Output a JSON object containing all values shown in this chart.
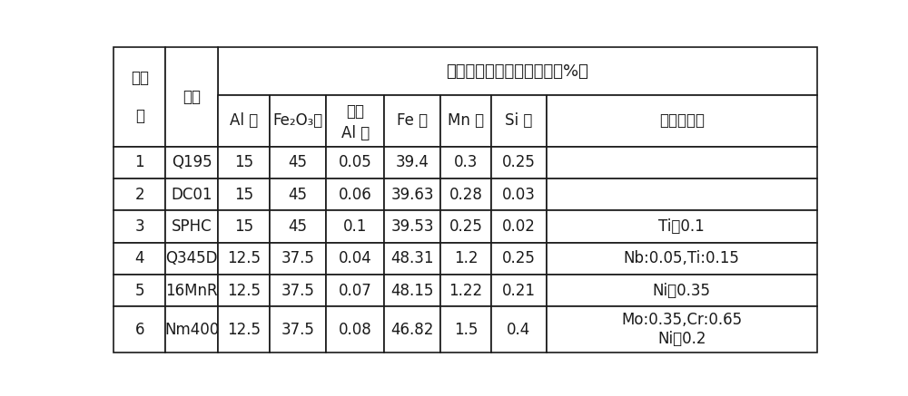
{
  "title": "铝热剂组分（按物质的量，%）",
  "col_headers_line1": [
    "Al 粉",
    "Fe₂O₃粉",
    "过量",
    "Fe 粉",
    "Mn 粉",
    "Si 粉",
    "其他金属粉"
  ],
  "col_headers_line2": [
    "",
    "",
    "Al 粉",
    "",
    "",
    "",
    ""
  ],
  "row_headers_col1": [
    "1",
    "2",
    "3",
    "4",
    "5",
    "6"
  ],
  "row_headers_col2": [
    "Q195",
    "DC01",
    "SPHC",
    "Q345D",
    "16MnR",
    "Nm400"
  ],
  "data": [
    [
      "15",
      "45",
      "0.05",
      "39.4",
      "0.3",
      "0.25",
      ""
    ],
    [
      "15",
      "45",
      "0.06",
      "39.63",
      "0.28",
      "0.03",
      ""
    ],
    [
      "15",
      "45",
      "0.1",
      "39.53",
      "0.25",
      "0.02",
      "Ti：0.1"
    ],
    [
      "12.5",
      "37.5",
      "0.04",
      "48.31",
      "1.2",
      "0.25",
      "Nb:0.05,Ti:0.15"
    ],
    [
      "12.5",
      "37.5",
      "0.07",
      "48.15",
      "1.22",
      "0.21",
      "Ni：0.35"
    ],
    [
      "12.5",
      "37.5",
      "0.08",
      "46.82",
      "1.5",
      "0.4",
      "Mo:0.35,Cr:0.65\nNi：0.2"
    ]
  ],
  "border_color": "#1a1a1a",
  "cell_bg": "#ffffff",
  "text_color": "#1a1a1a",
  "font_size": 12,
  "header_font_size": 12,
  "title_font_size": 13
}
